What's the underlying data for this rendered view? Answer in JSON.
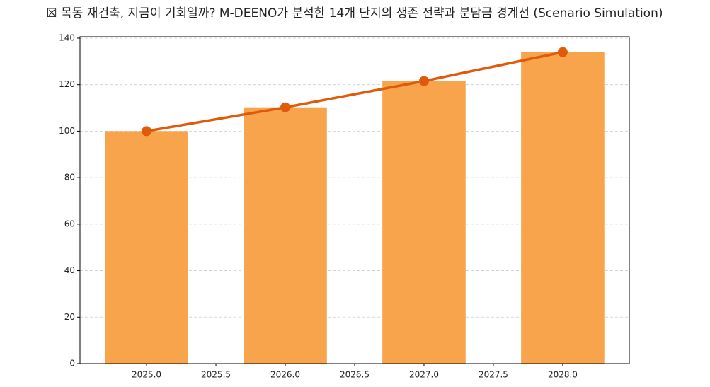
{
  "chart_data": {
    "type": "bar",
    "title": "☒ 목동 재건축, 지금이 기회일까? M-DEENO가 분석한 14개 단지의 생존 전략과 분담금 경계선 (Scenario Simulation)",
    "x": [
      2025,
      2026,
      2027,
      2028
    ],
    "series": [
      {
        "type": "bar",
        "color": "#f7a44c",
        "values": [
          100,
          110.25,
          121.55,
          134.01
        ]
      },
      {
        "type": "line",
        "color": "#e05a0a",
        "values": [
          100,
          110.25,
          121.55,
          134.01
        ]
      }
    ],
    "bar_width": 0.6,
    "xlim": [
      2024.52,
      2028.48
    ],
    "xticks": [
      {
        "value": 2025,
        "label": "2025.0"
      },
      2025.5,
      {
        "value": 2026,
        "label": "2026.0"
      },
      2026.5,
      {
        "value": 2027,
        "label": "2027.0"
      },
      2027.5,
      {
        "value": 2028,
        "label": "2028.0"
      }
    ],
    "ylim": [
      0,
      140.6
    ],
    "yticks": [
      0,
      20,
      40,
      60,
      80,
      100,
      120,
      140
    ],
    "grid": true
  }
}
